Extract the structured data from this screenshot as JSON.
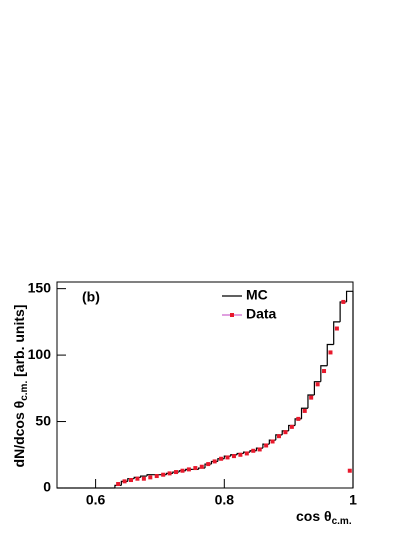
{
  "chart_data": {
    "type": "histogram",
    "annotation": "(b)",
    "xlabel": [
      "cos θ",
      "c.m."
    ],
    "ylabel": [
      "dN/dcos θ",
      "c.m.",
      " [arb. units]"
    ],
    "xlim": [
      0.54,
      1.0
    ],
    "xticks": [
      0.6,
      0.8,
      1
    ],
    "ylim": [
      0,
      155
    ],
    "yticks": [
      0,
      50,
      100,
      150
    ],
    "series": [
      {
        "name": "MC",
        "color": "#000000",
        "bins": [
          0.54,
          0.55,
          0.56,
          0.57,
          0.58,
          0.59,
          0.6,
          0.61,
          0.62,
          0.63,
          0.64,
          0.65,
          0.66,
          0.67,
          0.68,
          0.69,
          0.7,
          0.71,
          0.72,
          0.73,
          0.74,
          0.75,
          0.76,
          0.77,
          0.78,
          0.79,
          0.8,
          0.81,
          0.82,
          0.83,
          0.84,
          0.85,
          0.86,
          0.87,
          0.88,
          0.89,
          0.9,
          0.91,
          0.92,
          0.93,
          0.94,
          0.95,
          0.96,
          0.97,
          0.98,
          0.99,
          1.0
        ],
        "values": [
          0,
          0,
          0,
          0,
          0,
          0,
          0,
          0,
          0,
          2,
          5,
          7,
          8,
          9,
          10,
          10,
          10,
          11,
          12,
          13,
          14,
          14,
          15,
          18,
          20,
          22,
          24,
          25,
          26,
          27,
          28,
          30,
          33,
          36,
          40,
          43,
          47,
          52,
          60,
          70,
          80,
          92,
          108,
          125,
          140,
          148
        ]
      },
      {
        "name": "Data",
        "color": "#e8192c",
        "x": [
          0.635,
          0.645,
          0.655,
          0.665,
          0.675,
          0.685,
          0.695,
          0.705,
          0.715,
          0.725,
          0.735,
          0.745,
          0.755,
          0.765,
          0.775,
          0.785,
          0.795,
          0.805,
          0.815,
          0.825,
          0.835,
          0.845,
          0.855,
          0.865,
          0.875,
          0.885,
          0.895,
          0.905,
          0.915,
          0.925,
          0.935,
          0.945,
          0.955,
          0.965,
          0.975,
          0.985,
          0.995
        ],
        "values": [
          3,
          5,
          6,
          7,
          7,
          8,
          9,
          10,
          11,
          12,
          13,
          14,
          15,
          16,
          18,
          20,
          22,
          23,
          24,
          25,
          26,
          28,
          29,
          32,
          35,
          39,
          42,
          46,
          52,
          58,
          68,
          78,
          88,
          102,
          120,
          140,
          13
        ]
      }
    ]
  }
}
